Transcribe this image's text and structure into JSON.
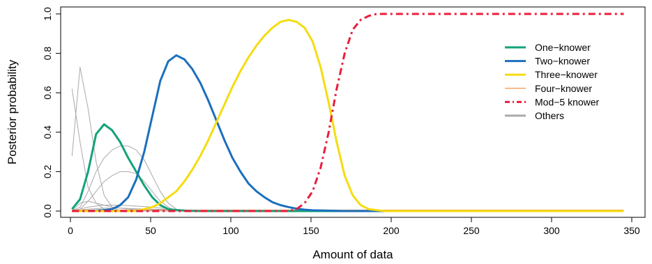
{
  "chart_data": {
    "type": "line",
    "xlabel": "Amount of data",
    "ylabel": "Posterior probability",
    "xlim": [
      0,
      350
    ],
    "ylim": [
      0,
      1
    ],
    "x_ticks": [
      "0",
      "50",
      "100",
      "150",
      "200",
      "250",
      "300",
      "350"
    ],
    "y_ticks": [
      "0.0",
      "0.2",
      "0.4",
      "0.6",
      "0.8",
      "1.0"
    ],
    "grid": false,
    "legend_position": "top-right",
    "series": [
      {
        "name": "One−knower",
        "color": "#12a37a",
        "style": "solid",
        "points": [
          [
            1,
            0.01
          ],
          [
            6,
            0.06
          ],
          [
            11,
            0.2
          ],
          [
            16,
            0.39
          ],
          [
            21,
            0.44
          ],
          [
            26,
            0.41
          ],
          [
            31,
            0.35
          ],
          [
            36,
            0.27
          ],
          [
            41,
            0.2
          ],
          [
            46,
            0.13
          ],
          [
            51,
            0.07
          ],
          [
            56,
            0.03
          ],
          [
            61,
            0.01
          ],
          [
            66,
            0.005
          ],
          [
            71,
            0.002
          ],
          [
            80,
            0.0
          ],
          [
            345,
            0.0
          ]
        ]
      },
      {
        "name": "Two−knower",
        "color": "#1b6fbd",
        "style": "solid",
        "points": [
          [
            1,
            0.0
          ],
          [
            11,
            0.0
          ],
          [
            21,
            0.005
          ],
          [
            26,
            0.01
          ],
          [
            31,
            0.03
          ],
          [
            36,
            0.07
          ],
          [
            41,
            0.16
          ],
          [
            46,
            0.3
          ],
          [
            51,
            0.48
          ],
          [
            56,
            0.66
          ],
          [
            61,
            0.76
          ],
          [
            66,
            0.79
          ],
          [
            71,
            0.77
          ],
          [
            76,
            0.72
          ],
          [
            81,
            0.65
          ],
          [
            86,
            0.56
          ],
          [
            91,
            0.46
          ],
          [
            96,
            0.36
          ],
          [
            101,
            0.27
          ],
          [
            106,
            0.2
          ],
          [
            111,
            0.14
          ],
          [
            116,
            0.1
          ],
          [
            121,
            0.07
          ],
          [
            126,
            0.045
          ],
          [
            131,
            0.03
          ],
          [
            136,
            0.02
          ],
          [
            141,
            0.012
          ],
          [
            146,
            0.007
          ],
          [
            151,
            0.004
          ],
          [
            161,
            0.002
          ],
          [
            171,
            0.0
          ],
          [
            345,
            0.0
          ]
        ]
      },
      {
        "name": "Three−knower",
        "color": "#f5dc10",
        "style": "solid",
        "points": [
          [
            1,
            0.0
          ],
          [
            41,
            0.0
          ],
          [
            46,
            0.01
          ],
          [
            51,
            0.02
          ],
          [
            56,
            0.04
          ],
          [
            61,
            0.07
          ],
          [
            66,
            0.1
          ],
          [
            71,
            0.15
          ],
          [
            76,
            0.21
          ],
          [
            81,
            0.28
          ],
          [
            86,
            0.36
          ],
          [
            91,
            0.45
          ],
          [
            96,
            0.54
          ],
          [
            101,
            0.63
          ],
          [
            106,
            0.71
          ],
          [
            111,
            0.78
          ],
          [
            116,
            0.84
          ],
          [
            121,
            0.89
          ],
          [
            126,
            0.93
          ],
          [
            131,
            0.96
          ],
          [
            136,
            0.97
          ],
          [
            141,
            0.96
          ],
          [
            146,
            0.93
          ],
          [
            151,
            0.86
          ],
          [
            156,
            0.73
          ],
          [
            161,
            0.55
          ],
          [
            166,
            0.35
          ],
          [
            171,
            0.18
          ],
          [
            176,
            0.08
          ],
          [
            181,
            0.03
          ],
          [
            186,
            0.01
          ],
          [
            196,
            0.0
          ],
          [
            345,
            0.0
          ]
        ]
      },
      {
        "name": "Four−knower",
        "color": "#e8791e",
        "style": "thin",
        "points": [
          [
            1,
            0.005
          ],
          [
            50,
            0.005
          ],
          [
            345,
            0.005
          ]
        ]
      },
      {
        "name": "Mod−5 knower",
        "color": "#e81e3c",
        "style": "dashdot",
        "points": [
          [
            1,
            0.0
          ],
          [
            136,
            0.0
          ],
          [
            141,
            0.01
          ],
          [
            146,
            0.04
          ],
          [
            151,
            0.1
          ],
          [
            156,
            0.22
          ],
          [
            161,
            0.4
          ],
          [
            166,
            0.62
          ],
          [
            171,
            0.8
          ],
          [
            176,
            0.92
          ],
          [
            181,
            0.97
          ],
          [
            186,
            0.99
          ],
          [
            191,
            1.0
          ],
          [
            345,
            1.0
          ]
        ]
      },
      {
        "name": "Others",
        "color": "#a9a9a9",
        "style": "thin",
        "lines": [
          [
            [
              1,
              0.62
            ],
            [
              6,
              0.35
            ],
            [
              11,
              0.12
            ],
            [
              16,
              0.04
            ],
            [
              21,
              0.01
            ],
            [
              26,
              0.0
            ],
            [
              345,
              0.0
            ]
          ],
          [
            [
              1,
              0.28
            ],
            [
              6,
              0.73
            ],
            [
              11,
              0.52
            ],
            [
              16,
              0.25
            ],
            [
              21,
              0.08
            ],
            [
              26,
              0.02
            ],
            [
              31,
              0.0
            ],
            [
              345,
              0.0
            ]
          ],
          [
            [
              1,
              0.0
            ],
            [
              6,
              0.02
            ],
            [
              11,
              0.1
            ],
            [
              16,
              0.2
            ],
            [
              21,
              0.27
            ],
            [
              26,
              0.31
            ],
            [
              31,
              0.33
            ],
            [
              36,
              0.33
            ],
            [
              41,
              0.31
            ],
            [
              46,
              0.26
            ],
            [
              51,
              0.18
            ],
            [
              56,
              0.1
            ],
            [
              61,
              0.04
            ],
            [
              66,
              0.01
            ],
            [
              71,
              0.0
            ],
            [
              345,
              0.0
            ]
          ],
          [
            [
              1,
              0.0
            ],
            [
              6,
              0.01
            ],
            [
              11,
              0.05
            ],
            [
              16,
              0.1
            ],
            [
              21,
              0.15
            ],
            [
              26,
              0.18
            ],
            [
              31,
              0.2
            ],
            [
              36,
              0.2
            ],
            [
              41,
              0.19
            ],
            [
              46,
              0.15
            ],
            [
              51,
              0.1
            ],
            [
              56,
              0.05
            ],
            [
              61,
              0.02
            ],
            [
              66,
              0.0
            ],
            [
              345,
              0.0
            ]
          ],
          [
            [
              1,
              0.0
            ],
            [
              6,
              0.04
            ],
            [
              11,
              0.05
            ],
            [
              16,
              0.04
            ],
            [
              21,
              0.03
            ],
            [
              26,
              0.02
            ],
            [
              36,
              0.01
            ],
            [
              51,
              0.0
            ],
            [
              345,
              0.0
            ]
          ],
          [
            [
              1,
              0.0
            ],
            [
              11,
              0.02
            ],
            [
              21,
              0.03
            ],
            [
              31,
              0.03
            ],
            [
              41,
              0.025
            ],
            [
              51,
              0.02
            ],
            [
              61,
              0.012
            ],
            [
              71,
              0.006
            ],
            [
              81,
              0.0
            ],
            [
              345,
              0.0
            ]
          ],
          [
            [
              1,
              0.0
            ],
            [
              11,
              0.01
            ],
            [
              21,
              0.015
            ],
            [
              31,
              0.015
            ],
            [
              41,
              0.012
            ],
            [
              51,
              0.01
            ],
            [
              61,
              0.008
            ],
            [
              71,
              0.004
            ],
            [
              81,
              0.0
            ],
            [
              345,
              0.0
            ]
          ]
        ]
      }
    ]
  }
}
